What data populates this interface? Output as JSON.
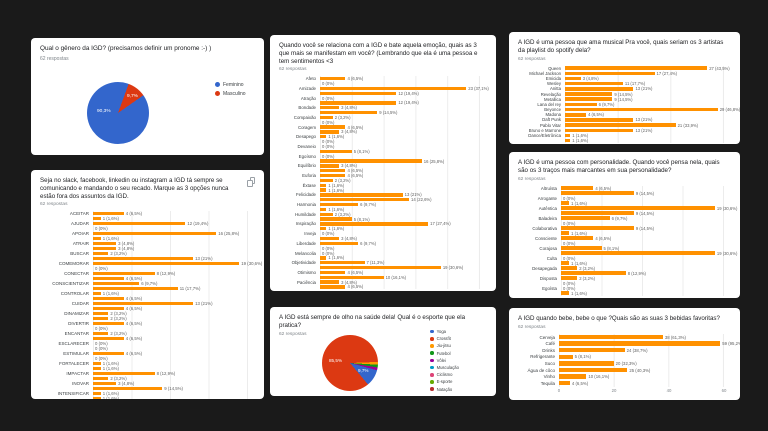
{
  "page": {
    "background": "#1a1a1a",
    "card_background": "#ffffff"
  },
  "styles": {
    "bar_color": "#ff9100",
    "title_color": "#202124",
    "muted_color": "#80868b"
  },
  "icons": {
    "card_action": "copy-icon"
  },
  "chart_data": [
    {
      "id": "gender",
      "type": "pie",
      "title": "Qual o gênero da IGD? (precisamos definir um pronome :-) )",
      "responses": "62 respostas",
      "slices": [
        {
          "label": "Feminino",
          "pct": 90.3,
          "pct_label": "90,3%",
          "color": "#3366cc"
        },
        {
          "label": "Masculino",
          "pct": 9.7,
          "pct_label": "9,7%",
          "color": "#dc3912"
        }
      ],
      "legend": [
        {
          "label": "Feminino",
          "color": "#3366cc"
        },
        {
          "label": "Masculino",
          "color": "#dc3912"
        }
      ],
      "legend_position": "right"
    },
    {
      "id": "topics",
      "type": "bar",
      "title": "Seja no slack, facebook, linkedin ou instagram a IGD tá sempre se comunicando e mandando o seu recado. Marque as 3 opções nunca estão fora dos assuntos da IGD.",
      "responses": "62 respostas",
      "axis_max": 20,
      "rows": [
        {
          "label": "ACEITAR",
          "value": 4,
          "text": "4 (6,5%)"
        },
        {
          "label": "",
          "value": 1,
          "text": "1 (1,6%)"
        },
        {
          "label": "AJUDAR",
          "value": 12,
          "text": "12 (19,4%)"
        },
        {
          "label": "",
          "value": 0,
          "text": "0 (0%)"
        },
        {
          "label": "APOIAR",
          "value": 16,
          "text": "16 (25,8%)"
        },
        {
          "label": "",
          "value": 1,
          "text": "1 (1,6%)"
        },
        {
          "label": "ATRAIR",
          "value": 3,
          "text": "3 (4,8%)"
        },
        {
          "label": "",
          "value": 3,
          "text": "3 (4,8%)"
        },
        {
          "label": "BUSCAR",
          "value": 2,
          "text": "2 (3,2%)"
        },
        {
          "label": "",
          "value": 13,
          "text": "13 (21%)"
        },
        {
          "label": "COMEMORAR",
          "value": 19,
          "text": "19 (30,6%)"
        },
        {
          "label": "",
          "value": 0,
          "text": "0 (0%)"
        },
        {
          "label": "CONECTAR",
          "value": 8,
          "text": "8 (12,9%)"
        },
        {
          "label": "",
          "value": 4,
          "text": "4 (6,5%)"
        },
        {
          "label": "CONSCIENTIZAR",
          "value": 6,
          "text": "6 (9,7%)"
        },
        {
          "label": "",
          "value": 11,
          "text": "11 (17,7%)"
        },
        {
          "label": "CONTROLAR",
          "value": 1,
          "text": "1 (1,6%)"
        },
        {
          "label": "",
          "value": 4,
          "text": "4 (6,5%)"
        },
        {
          "label": "CUIDAR",
          "value": 13,
          "text": "13 (21%)"
        },
        {
          "label": "",
          "value": 4,
          "text": "4 (6,5%)"
        },
        {
          "label": "DINAMIZAR",
          "value": 2,
          "text": "2 (3,2%)"
        },
        {
          "label": "",
          "value": 2,
          "text": "2 (3,2%)"
        },
        {
          "label": "DIVERTIR",
          "value": 4,
          "text": "4 (6,5%)"
        },
        {
          "label": "",
          "value": 0,
          "text": "0 (0%)"
        },
        {
          "label": "ENCANTAR",
          "value": 2,
          "text": "2 (3,2%)"
        },
        {
          "label": "",
          "value": 4,
          "text": "4 (6,5%)"
        },
        {
          "label": "ESCLARECER",
          "value": 0,
          "text": "0 (0%)"
        },
        {
          "label": "",
          "value": 0,
          "text": "0 (0%)"
        },
        {
          "label": "ESTIMULAR",
          "value": 4,
          "text": "4 (6,5%)"
        },
        {
          "label": "",
          "value": 0,
          "text": "0 (0%)"
        },
        {
          "label": "FORTALECER",
          "value": 1,
          "text": "1 (1,6%)"
        },
        {
          "label": "",
          "value": 1,
          "text": "1 (1,6%)"
        },
        {
          "label": "IMPACTAR",
          "value": 8,
          "text": "8 (12,9%)"
        },
        {
          "label": "",
          "value": 2,
          "text": "2 (3,2%)"
        },
        {
          "label": "INOVAR",
          "value": 3,
          "text": "3 (4,8%)"
        },
        {
          "label": "",
          "value": 9,
          "text": "9 (14,5%)"
        },
        {
          "label": "INTENSIFICAR",
          "value": 1,
          "text": "1 (1,6%)"
        },
        {
          "label": "",
          "value": 1,
          "text": "1 (1,6%)"
        },
        {
          "label": "MANIFESTAR",
          "value": 0,
          "text": "0 (0%)"
        }
      ]
    },
    {
      "id": "emotions",
      "type": "bar",
      "title": "Quando você se relaciona com a IGD e bate aquela emoção, quais as 3 que mais se manifestam em você? (Lembrando que ela é uma pessoa e tem sentimentos <3",
      "responses": "62 respostas",
      "axis_max": 25,
      "rows": [
        {
          "label": "Afeto",
          "value": 4,
          "text": "4 (6,5%)"
        },
        {
          "label": "",
          "value": 0,
          "text": "0 (0%)"
        },
        {
          "label": "Amizade",
          "value": 23,
          "text": "23 (37,1%)"
        },
        {
          "label": "",
          "value": 12,
          "text": "12 (19,4%)"
        },
        {
          "label": "Atração",
          "value": 0,
          "text": "0 (0%)"
        },
        {
          "label": "",
          "value": 12,
          "text": "12 (19,4%)"
        },
        {
          "label": "Bondade",
          "value": 3,
          "text": "3 (4,8%)"
        },
        {
          "label": "",
          "value": 9,
          "text": "9 (14,5%)"
        },
        {
          "label": "Compaixão",
          "value": 2,
          "text": "2 (3,2%)"
        },
        {
          "label": "",
          "value": 0,
          "text": "0 (0%)"
        },
        {
          "label": "Coragem",
          "value": 4,
          "text": "4 (6,5%)"
        },
        {
          "label": "",
          "value": 3,
          "text": "3 (4,8%)"
        },
        {
          "label": "Desapego",
          "value": 1,
          "text": "1 (1,6%)"
        },
        {
          "label": "",
          "value": 0,
          "text": "0 (0%)"
        },
        {
          "label": "Devaneio",
          "value": 0,
          "text": "0 (0%)"
        },
        {
          "label": "",
          "value": 5,
          "text": "5 (8,1%)"
        },
        {
          "label": "Egoísmo",
          "value": 0,
          "text": "0 (0%)"
        },
        {
          "label": "",
          "value": 16,
          "text": "16 (25,8%)"
        },
        {
          "label": "Equilíbrio",
          "value": 3,
          "text": "3 (4,8%)"
        },
        {
          "label": "",
          "value": 4,
          "text": "4 (6,5%)"
        },
        {
          "label": "Euforia",
          "value": 4,
          "text": "4 (6,5%)"
        },
        {
          "label": "",
          "value": 2,
          "text": "2 (3,2%)"
        },
        {
          "label": "Êxtase",
          "value": 1,
          "text": "1 (1,6%)"
        },
        {
          "label": "",
          "value": 1,
          "text": "1 (1,6%)"
        },
        {
          "label": "Felicidade",
          "value": 13,
          "text": "13 (21%)"
        },
        {
          "label": "",
          "value": 14,
          "text": "14 (22,6%)"
        },
        {
          "label": "Harmonia",
          "value": 6,
          "text": "6 (9,7%)"
        },
        {
          "label": "",
          "value": 1,
          "text": "1 (1,6%)"
        },
        {
          "label": "Humildade",
          "value": 2,
          "text": "2 (3,2%)"
        },
        {
          "label": "",
          "value": 5,
          "text": "5 (8,1%)"
        },
        {
          "label": "Inspiração",
          "value": 17,
          "text": "17 (27,4%)"
        },
        {
          "label": "",
          "value": 1,
          "text": "1 (1,6%)"
        },
        {
          "label": "Inveja",
          "value": 0,
          "text": "0 (0%)"
        },
        {
          "label": "",
          "value": 3,
          "text": "3 (4,8%)"
        },
        {
          "label": "Liberdade",
          "value": 6,
          "text": "6 (9,7%)"
        },
        {
          "label": "",
          "value": 0,
          "text": "0 (0%)"
        },
        {
          "label": "Melancolia",
          "value": 0,
          "text": "0 (0%)"
        },
        {
          "label": "",
          "value": 1,
          "text": "1 (1,6%)"
        },
        {
          "label": "Objetividade",
          "value": 7,
          "text": "7 (11,3%)"
        },
        {
          "label": "",
          "value": 19,
          "text": "19 (30,6%)"
        },
        {
          "label": "Otimismo",
          "value": 4,
          "text": "4 (6,5%)"
        },
        {
          "label": "",
          "value": 10,
          "text": "10 (16,1%)"
        },
        {
          "label": "Paciência",
          "value": 3,
          "text": "3 (4,8%)"
        },
        {
          "label": "",
          "value": 4,
          "text": "4 (6,5%)"
        }
      ]
    },
    {
      "id": "sports",
      "type": "pie",
      "title": "A IGD está sempre de olho na saúde dela! Qual é o esporte que ela pratica?",
      "responses": "62 respostas",
      "slices": [
        {
          "label": "Crossfit",
          "pct": 85.5,
          "pct_label": "85,5%",
          "color": "#dc3912"
        },
        {
          "label": "Jiu-jitsu",
          "pct": 1.6,
          "color": "#ff9900"
        },
        {
          "label": "Futebol",
          "pct": 1.6,
          "color": "#109618"
        },
        {
          "label": "Vôlei",
          "pct": 1.6,
          "color": "#990099"
        },
        {
          "label": "Yoga",
          "pct": 9.7,
          "pct_label": "9,7%",
          "color": "#3366cc"
        }
      ],
      "legend": [
        {
          "label": "Yoga",
          "color": "#3366cc"
        },
        {
          "label": "Crossfit",
          "color": "#dc3912"
        },
        {
          "label": "Jiu-jitsu",
          "color": "#ff9900"
        },
        {
          "label": "Futebol",
          "color": "#109618"
        },
        {
          "label": "Vôlei",
          "color": "#990099"
        },
        {
          "label": "Musculação",
          "color": "#0099c6"
        },
        {
          "label": "Ciclismo",
          "color": "#dd4477"
        },
        {
          "label": "E-sporte",
          "color": "#66aa00"
        },
        {
          "label": "Natação",
          "color": "#b82e2e"
        }
      ],
      "legend_position": "right"
    },
    {
      "id": "artists",
      "type": "bar",
      "title": "A IGD é uma pessoa que ama musical Pra você, quais seriam os 3 artistas da playlist do spotify dela?",
      "responses": "62 respostas",
      "axis_max": 30,
      "rows": [
        {
          "label": "Queen",
          "value": 27,
          "text": "27 (43,5%)"
        },
        {
          "label": "Michael Jackson",
          "value": 17,
          "text": "17 (27,4%)"
        },
        {
          "label": "Emicida",
          "value": 3,
          "text": "3 (4,8%)"
        },
        {
          "label": "Wesley",
          "value": 11,
          "text": "11 (17,7%)"
        },
        {
          "label": "Anitta",
          "value": 13,
          "text": "13 (21%)"
        },
        {
          "label": "Revelação",
          "value": 9,
          "text": "9 (14,5%)"
        },
        {
          "label": "Metallica",
          "value": 9,
          "text": "9 (14,5%)"
        },
        {
          "label": "Lana del rey",
          "value": 6,
          "text": "6 (9,7%)"
        },
        {
          "label": "Beyonce",
          "value": 29,
          "text": "29 (46,8%)"
        },
        {
          "label": "Madona",
          "value": 4,
          "text": "4 (6,5%)"
        },
        {
          "label": "Daft Punk",
          "value": 13,
          "text": "13 (21%)"
        },
        {
          "label": "Pablo Vitar",
          "value": 21,
          "text": "21 (33,9%)"
        },
        {
          "label": "Bruno e Marrone",
          "value": 13,
          "text": "13 (21%)"
        },
        {
          "label": "Dance/Eletrônica",
          "value": 1,
          "text": "1 (1,6%)"
        },
        {
          "label": "",
          "value": 1,
          "text": "1 (1,6%)"
        }
      ]
    },
    {
      "id": "personality",
      "type": "bar",
      "title": "A IGD é uma pessoa com personalidade. Quando você pensa nela, quais são os 3 traços mais marcantes em sua personalidade?",
      "responses": "62 respostas",
      "axis_max": 20,
      "rows": [
        {
          "label": "Altruísta",
          "value": 4,
          "text": "4 (6,5%)"
        },
        {
          "label": "",
          "value": 9,
          "text": "9 (14,5%)"
        },
        {
          "label": "Arrogante",
          "value": 0,
          "text": "0 (0%)"
        },
        {
          "label": "",
          "value": 1,
          "text": "1 (1,6%)"
        },
        {
          "label": "Autêntica",
          "value": 19,
          "text": "19 (30,6%)"
        },
        {
          "label": "",
          "value": 9,
          "text": "9 (14,5%)"
        },
        {
          "label": "Baladeira",
          "value": 6,
          "text": "6 (9,7%)"
        },
        {
          "label": "",
          "value": 0,
          "text": "0 (0%)"
        },
        {
          "label": "Colaborativa",
          "value": 9,
          "text": "9 (14,5%)"
        },
        {
          "label": "",
          "value": 1,
          "text": "1 (1,6%)"
        },
        {
          "label": "Consciente",
          "value": 4,
          "text": "4 (6,5%)"
        },
        {
          "label": "",
          "value": 0,
          "text": "0 (0%)"
        },
        {
          "label": "Corajosa",
          "value": 5,
          "text": "5 (8,1%)"
        },
        {
          "label": "",
          "value": 19,
          "text": "19 (30,6%)"
        },
        {
          "label": "Culta",
          "value": 0,
          "text": "0 (0%)"
        },
        {
          "label": "",
          "value": 1,
          "text": "1 (1,6%)"
        },
        {
          "label": "Desapegada",
          "value": 2,
          "text": "2 (3,2%)"
        },
        {
          "label": "",
          "value": 8,
          "text": "8 (12,9%)"
        },
        {
          "label": "Disposta",
          "value": 2,
          "text": "2 (3,2%)"
        },
        {
          "label": "",
          "value": 0,
          "text": "0 (0%)"
        },
        {
          "label": "Egoísta",
          "value": 0,
          "text": "0 (0%)"
        },
        {
          "label": "",
          "value": 1,
          "text": "1 (1,6%)"
        }
      ]
    },
    {
      "id": "drinks",
      "type": "bar",
      "title": "A IGD quando bebe, bebe o que ?Quais são as suas 3 bebidas favoritas?",
      "responses": "62 respostas",
      "axis_max": 60,
      "axis_ticks": [
        "0",
        "20",
        "40",
        "60"
      ],
      "rows": [
        {
          "label": "Cerveja",
          "value": 38,
          "text": "38 (61,3%)"
        },
        {
          "label": "Café",
          "value": 59,
          "text": "59 (95,2%)"
        },
        {
          "label": "Drinks",
          "value": 24,
          "text": "24 (38,7%)"
        },
        {
          "label": "Refrigerante",
          "value": 5,
          "text": "5 (8,1%)"
        },
        {
          "label": "Suco",
          "value": 20,
          "text": "20 (32,3%)"
        },
        {
          "label": "Água de côco",
          "value": 25,
          "text": "25 (40,3%)"
        },
        {
          "label": "Vinho",
          "value": 10,
          "text": "10 (16,1%)"
        },
        {
          "label": "Tequila",
          "value": 4,
          "text": "4 (6,5%)"
        }
      ]
    }
  ]
}
